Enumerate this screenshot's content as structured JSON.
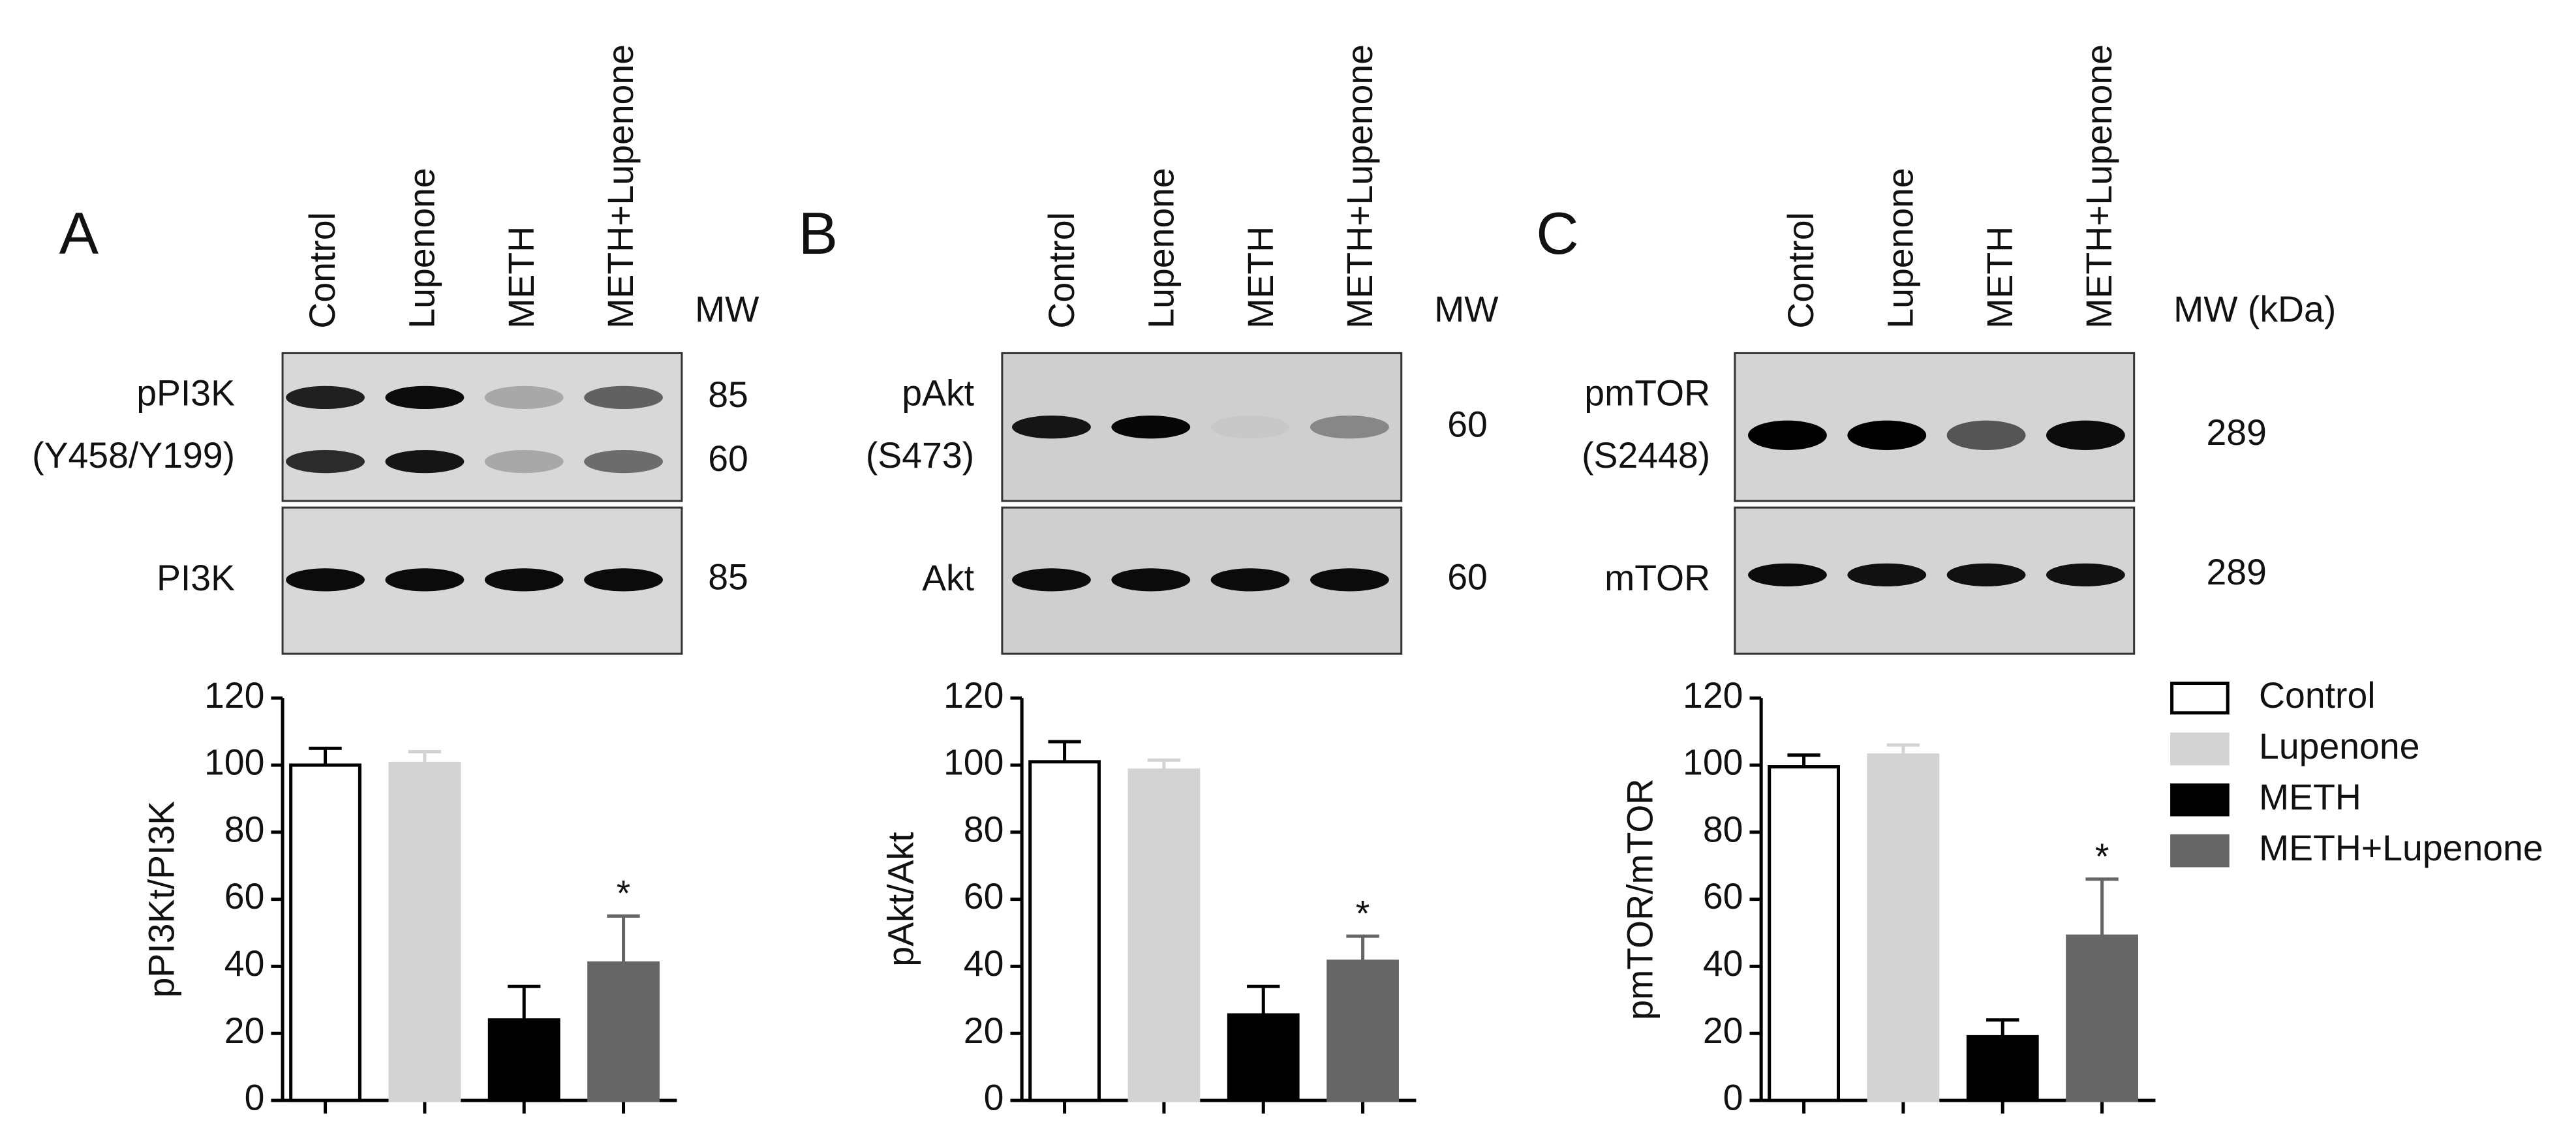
{
  "chart_data": [
    {
      "type": "bar",
      "panel": "A",
      "categories": [
        "Control",
        "Lupenone",
        "METH",
        "METH+Lupenone"
      ],
      "mw_header": "MW",
      "blots": [
        {
          "label": [
            "pPI3K",
            "(Y458/Y199)"
          ],
          "mw": [
            85,
            60
          ]
        },
        {
          "label": [
            "PI3K"
          ],
          "mw": [
            85
          ]
        }
      ],
      "ylabel": "pPI3Kt/PI3K",
      "values": [
        100,
        100.5,
        24,
        41
      ],
      "errors": [
        5,
        3.5,
        10,
        14
      ],
      "colors": [
        "#ffffff",
        "#d3d3d3",
        "#000000",
        "#666666"
      ],
      "annotations": [
        null,
        null,
        null,
        "*"
      ],
      "ylim": [
        0,
        120
      ],
      "yticks": [
        0,
        20,
        40,
        60,
        80,
        100,
        120
      ]
    },
    {
      "type": "bar",
      "panel": "B",
      "categories": [
        "Control",
        "Lupenone",
        "METH",
        "METH+Lupenone"
      ],
      "mw_header": "MW",
      "blots": [
        {
          "label": [
            "pAkt",
            "(S473)"
          ],
          "mw": [
            60
          ]
        },
        {
          "label": [
            "Akt"
          ],
          "mw": [
            60
          ]
        }
      ],
      "ylabel": "pAkt/Akt",
      "values": [
        101,
        98.5,
        25.5,
        41.5
      ],
      "errors": [
        6,
        3,
        8.5,
        7.5
      ],
      "colors": [
        "#ffffff",
        "#d3d3d3",
        "#000000",
        "#666666"
      ],
      "annotations": [
        null,
        null,
        null,
        "*"
      ],
      "ylim": [
        0,
        120
      ],
      "yticks": [
        0,
        20,
        40,
        60,
        80,
        100,
        120
      ]
    },
    {
      "type": "bar",
      "panel": "C",
      "categories": [
        "Control",
        "Lupenone",
        "METH",
        "METH+Lupenone"
      ],
      "mw_header": "MW (kDa)",
      "blots": [
        {
          "label": [
            "pmTOR",
            "(S2448)"
          ],
          "mw": [
            289
          ]
        },
        {
          "label": [
            "mTOR"
          ],
          "mw": [
            289
          ]
        }
      ],
      "ylabel": "pmTOR/mTOR",
      "values": [
        99.5,
        103,
        19,
        49
      ],
      "errors": [
        3.5,
        3,
        5,
        17
      ],
      "colors": [
        "#ffffff",
        "#d3d3d3",
        "#000000",
        "#666666"
      ],
      "annotations": [
        null,
        null,
        null,
        "*"
      ],
      "ylim": [
        0,
        120
      ],
      "yticks": [
        0,
        20,
        40,
        60,
        80,
        100,
        120
      ],
      "legend": "right"
    }
  ]
}
